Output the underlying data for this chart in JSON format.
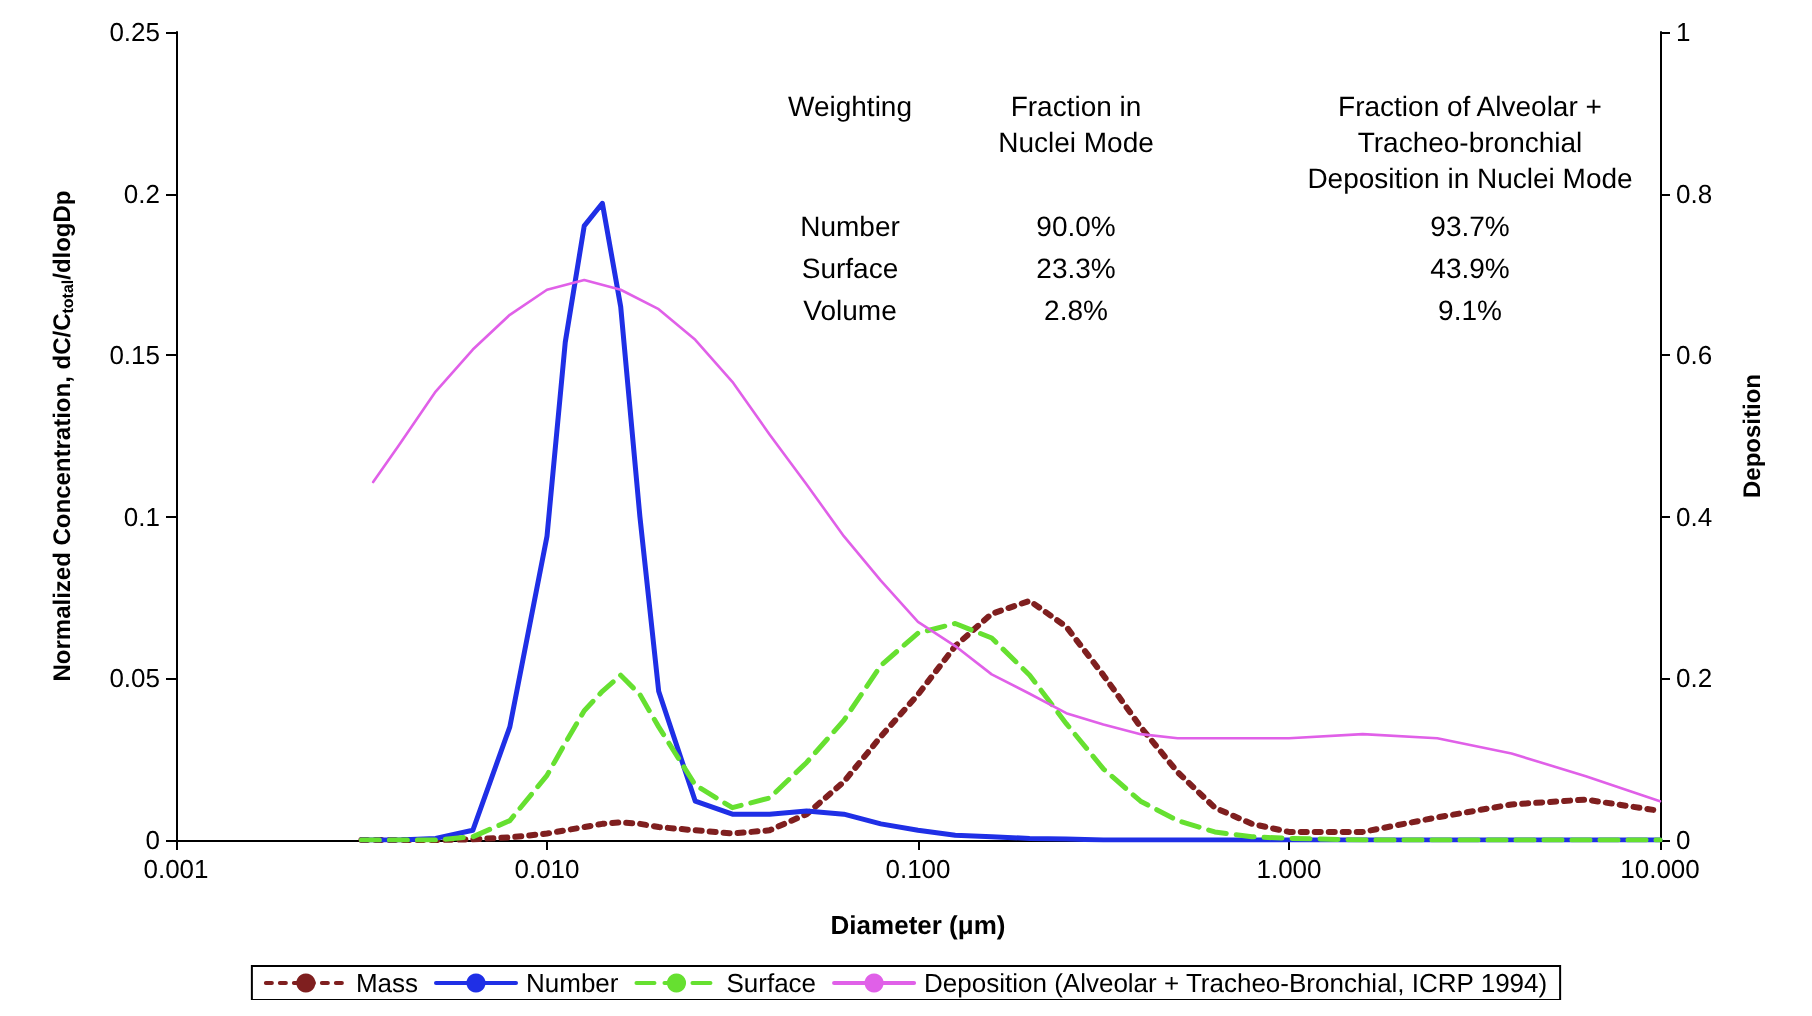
{
  "chart_data": {
    "type": "line",
    "xlabel": "Diameter (μm)",
    "ylabel": "Normalized Concentration, dC/C$_{total}$/dlogDp",
    "y2label": "Deposition",
    "log": "x",
    "xlim": [
      0.001,
      10
    ],
    "xticks": [
      {
        "value": 0.001,
        "label": "0.001"
      },
      {
        "value": 0.01,
        "label": "0.010"
      },
      {
        "value": 0.1,
        "label": "0.100"
      },
      {
        "value": 1,
        "label": "1.000"
      },
      {
        "value": 10,
        "label": "10.000"
      }
    ],
    "ylim": [
      0,
      0.25
    ],
    "yticks": [
      0,
      0.05,
      0.1,
      0.15,
      0.2,
      0.25
    ],
    "y2lim": [
      0,
      1
    ],
    "y2ticks": [
      0,
      0.2,
      0.4,
      0.6,
      0.8,
      1
    ],
    "grid": false,
    "legend": "bottom",
    "marker": "none",
    "annotations": [
      "Weighting",
      "Fraction in\nNuclei Mode",
      "Fraction of Alveolar +\nTracheo-bronchial\nDeposition in Nuclei Mode",
      "Number",
      "90.0%",
      "93.7%",
      "Surface",
      "23.3%",
      "43.9%",
      "Volume",
      "2.8%",
      "9.1%"
    ],
    "series": [
      {
        "name": "Mass",
        "color": "#7f1f1f",
        "line_style": "dotted",
        "x": [
          0.00316,
          0.00398,
          0.00501,
          0.00631,
          0.00794,
          0.01,
          0.0112,
          0.0126,
          0.0141,
          0.0158,
          0.0178,
          0.02,
          0.0251,
          0.0316,
          0.0398,
          0.0501,
          0.0631,
          0.0794,
          0.1,
          0.126,
          0.158,
          0.2,
          0.251,
          0.316,
          0.398,
          0.501,
          0.631,
          0.794,
          1,
          1.58,
          2.51,
          3.98,
          6.31,
          10
        ],
        "values": [
          0,
          0,
          0,
          0.0002,
          0.0008,
          0.002,
          0.003,
          0.004,
          0.005,
          0.0055,
          0.005,
          0.004,
          0.003,
          0.002,
          0.003,
          0.008,
          0.018,
          0.032,
          0.045,
          0.06,
          0.07,
          0.074,
          0.066,
          0.051,
          0.035,
          0.021,
          0.01,
          0.005,
          0.0025,
          0.0025,
          0.007,
          0.011,
          0.0125,
          0.009
        ]
      },
      {
        "name": "Number",
        "color": "#1f2fe6",
        "line_style": "solid",
        "x": [
          0.00316,
          0.00398,
          0.00501,
          0.00631,
          0.00794,
          0.01,
          0.0112,
          0.0126,
          0.0141,
          0.0158,
          0.0178,
          0.02,
          0.0251,
          0.0316,
          0.0398,
          0.0501,
          0.0631,
          0.0794,
          0.1,
          0.126,
          0.158,
          0.2,
          0.251,
          0.316,
          0.398,
          0.501,
          0.631,
          0.794,
          1,
          1.58,
          2.51,
          3.98,
          6.31,
          10
        ],
        "values": [
          0,
          0,
          0.0005,
          0.003,
          0.035,
          0.094,
          0.154,
          0.19,
          0.197,
          0.165,
          0.1,
          0.046,
          0.012,
          0.008,
          0.008,
          0.009,
          0.008,
          0.005,
          0.003,
          0.0015,
          0.001,
          0.0005,
          0.0003,
          0,
          0,
          0,
          0,
          0,
          0,
          0,
          0,
          0,
          0,
          0
        ]
      },
      {
        "name": "Surface",
        "color": "#66e030",
        "line_style": "dashed",
        "x": [
          0.00316,
          0.00398,
          0.00501,
          0.00631,
          0.00794,
          0.01,
          0.0112,
          0.0126,
          0.0141,
          0.0158,
          0.0178,
          0.02,
          0.0251,
          0.0316,
          0.0398,
          0.0501,
          0.0631,
          0.0794,
          0.1,
          0.126,
          0.158,
          0.2,
          0.251,
          0.316,
          0.398,
          0.501,
          0.631,
          0.794,
          1,
          1.58,
          2.51,
          3.98,
          6.31,
          10
        ],
        "values": [
          0,
          0,
          0,
          0.001,
          0.006,
          0.02,
          0.03,
          0.04,
          0.046,
          0.051,
          0.045,
          0.035,
          0.017,
          0.01,
          0.013,
          0.024,
          0.037,
          0.054,
          0.064,
          0.067,
          0.0625,
          0.051,
          0.036,
          0.022,
          0.012,
          0.006,
          0.0025,
          0.001,
          0.0005,
          0,
          0,
          0,
          0,
          0
        ]
      },
      {
        "name": "Deposition (Alveolar + Tracheo-Bronchial, ICRP 1994)",
        "color": "#e060e8",
        "line_style": "solid",
        "axis": "y2",
        "x": [
          0.0034,
          0.00398,
          0.00501,
          0.00631,
          0.00794,
          0.01,
          0.0126,
          0.0158,
          0.02,
          0.0251,
          0.0316,
          0.0398,
          0.0501,
          0.0631,
          0.0794,
          0.1,
          0.126,
          0.158,
          0.2,
          0.251,
          0.316,
          0.398,
          0.501,
          0.631,
          1,
          1.58,
          2.51,
          3.98,
          6.31,
          10
        ],
        "values": [
          0.443,
          0.488,
          0.555,
          0.607,
          0.65,
          0.681,
          0.693,
          0.681,
          0.657,
          0.619,
          0.567,
          0.502,
          0.44,
          0.376,
          0.321,
          0.27,
          0.24,
          0.205,
          0.181,
          0.157,
          0.143,
          0.131,
          0.126,
          0.126,
          0.126,
          0.131,
          0.126,
          0.107,
          0.079,
          0.048
        ]
      }
    ]
  }
}
